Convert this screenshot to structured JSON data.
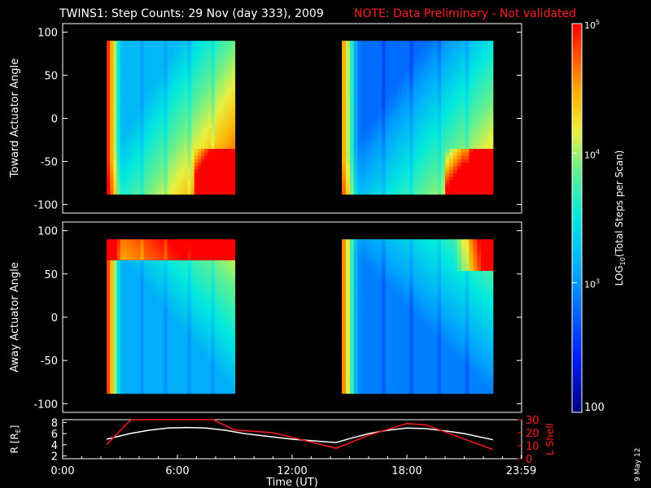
{
  "header": {
    "title": "TWINS1: Step Counts: 29 Nov (day 333), 2009",
    "note": "NOTE: Data Preliminary - Not validated"
  },
  "side_stamp": "9 May 12",
  "colors": {
    "background": "#000000",
    "axes": "#ffffff",
    "note": "#ff2020",
    "orbit_r": "#ffffff",
    "orbit_l": "#ff1a1a"
  },
  "chart_data": [
    {
      "type": "heatmap",
      "panel": "upper",
      "ylabel": "Toward Actuator Angle",
      "xlim": [
        0,
        24
      ],
      "ylim": [
        -110,
        110
      ],
      "yticks": [
        100,
        50,
        0,
        -50,
        -100
      ],
      "yrange_data": [
        -88,
        90
      ],
      "blocks": [
        {
          "x_start_h": 2.3,
          "x_end_h": 9.0
        },
        {
          "x_start_h": 14.6,
          "x_end_h": 22.5
        }
      ],
      "color_scale": "log10 rainbow, 100 to 1e5"
    },
    {
      "type": "heatmap",
      "panel": "lower",
      "ylabel": "Away Actuator Angle",
      "xlim": [
        0,
        24
      ],
      "ylim": [
        -110,
        110
      ],
      "yticks": [
        100,
        50,
        0,
        -50,
        -100
      ],
      "yrange_data": [
        -88,
        90
      ],
      "blocks": [
        {
          "x_start_h": 2.3,
          "x_end_h": 9.0
        },
        {
          "x_start_h": 14.6,
          "x_end_h": 22.5
        }
      ],
      "color_scale": "log10 rainbow, 100 to 1e5"
    },
    {
      "type": "line",
      "panel": "orbit",
      "xlabel": "Time (UT)",
      "xlim": [
        0,
        24
      ],
      "xtick_labels": [
        "0:00",
        "6:00",
        "12:00",
        "18:00",
        "23:59"
      ],
      "xtick_hours": [
        0,
        6,
        12,
        18,
        23.98
      ],
      "left_axis": {
        "label": "R [R",
        "label_sub": "E",
        "label_end": "]",
        "ylim": [
          1.5,
          8.5
        ],
        "ticks": [
          8,
          6,
          4,
          2
        ]
      },
      "right_axis": {
        "label": "L Shell",
        "ylim": [
          0,
          30
        ],
        "ticks": [
          30,
          20,
          10,
          0
        ],
        "tick_labels": [
          "30",
          "20",
          "10",
          "0"
        ]
      },
      "series": [
        {
          "axis": "left",
          "x": [
            2.3,
            3.5,
            4.5,
            5.5,
            6.5,
            7.5,
            8.5,
            9.5,
            10.5,
            12.0,
            13.5,
            14.3,
            15.0,
            16.0,
            17.0,
            18.0,
            19.0,
            20.0,
            21.0,
            22.5
          ],
          "y": [
            5.0,
            6.0,
            6.6,
            7.0,
            7.1,
            7.0,
            6.6,
            6.0,
            5.6,
            5.0,
            4.6,
            4.4,
            5.1,
            6.0,
            6.6,
            7.0,
            6.9,
            6.5,
            6.0,
            4.9
          ]
        },
        {
          "axis": "right",
          "x": [
            2.3,
            3.5,
            3.6,
            7.9,
            8.0,
            9.0,
            11.0,
            14.3,
            16.0,
            18.0,
            19.0,
            22.5
          ],
          "y": [
            11,
            29,
            30,
            30,
            29,
            22,
            20,
            8,
            18,
            27,
            26,
            7
          ]
        }
      ]
    }
  ],
  "colorbar": {
    "label_prefix": "LOG",
    "label_sub": "10",
    "label_suffix": "(Total Steps per Scan)",
    "ticks": [
      {
        "value": 100000,
        "base": "10",
        "exp": "5"
      },
      {
        "value": 10000,
        "base": "10",
        "exp": "4"
      },
      {
        "value": 1000,
        "base": "10",
        "exp": "3"
      }
    ],
    "bottom_label": "100",
    "range": [
      100,
      100000
    ]
  }
}
